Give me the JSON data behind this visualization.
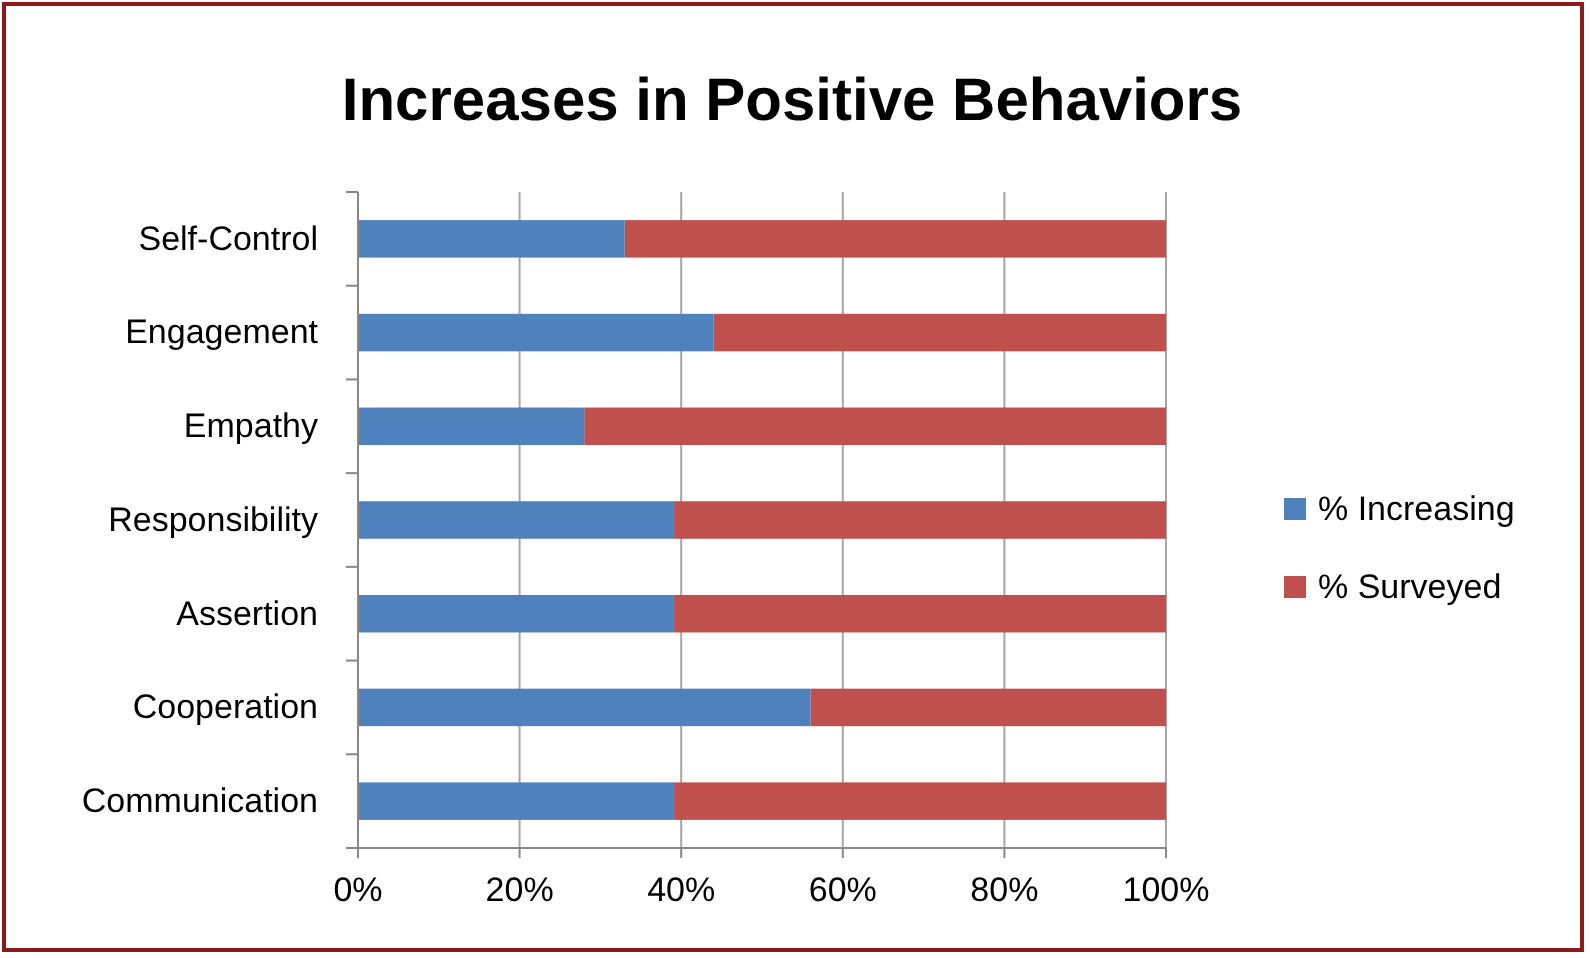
{
  "chart_data": {
    "type": "bar",
    "title": "Increases in Positive Behaviors",
    "orientation": "horizontal",
    "stacked": true,
    "categories": [
      "Self-Control",
      "Engagement",
      "Empathy",
      "Responsibility",
      "Assertion",
      "Cooperation",
      "Communication"
    ],
    "series": [
      {
        "name": "% Increasing",
        "color": "#4f81bd",
        "values": [
          33,
          44,
          28,
          39,
          39,
          56,
          39
        ]
      },
      {
        "name": "% Surveyed",
        "color": "#c0504d",
        "values": [
          67,
          56,
          72,
          61,
          61,
          44,
          61
        ]
      }
    ],
    "xlim": [
      0,
      100
    ],
    "xticks": [
      {
        "value": 0,
        "label": "0%"
      },
      {
        "value": 20,
        "label": "20%"
      },
      {
        "value": 40,
        "label": "40%"
      },
      {
        "value": 60,
        "label": "60%"
      },
      {
        "value": 80,
        "label": "80%"
      },
      {
        "value": 100,
        "label": "100%"
      }
    ],
    "grid": "x",
    "legend": "right"
  }
}
